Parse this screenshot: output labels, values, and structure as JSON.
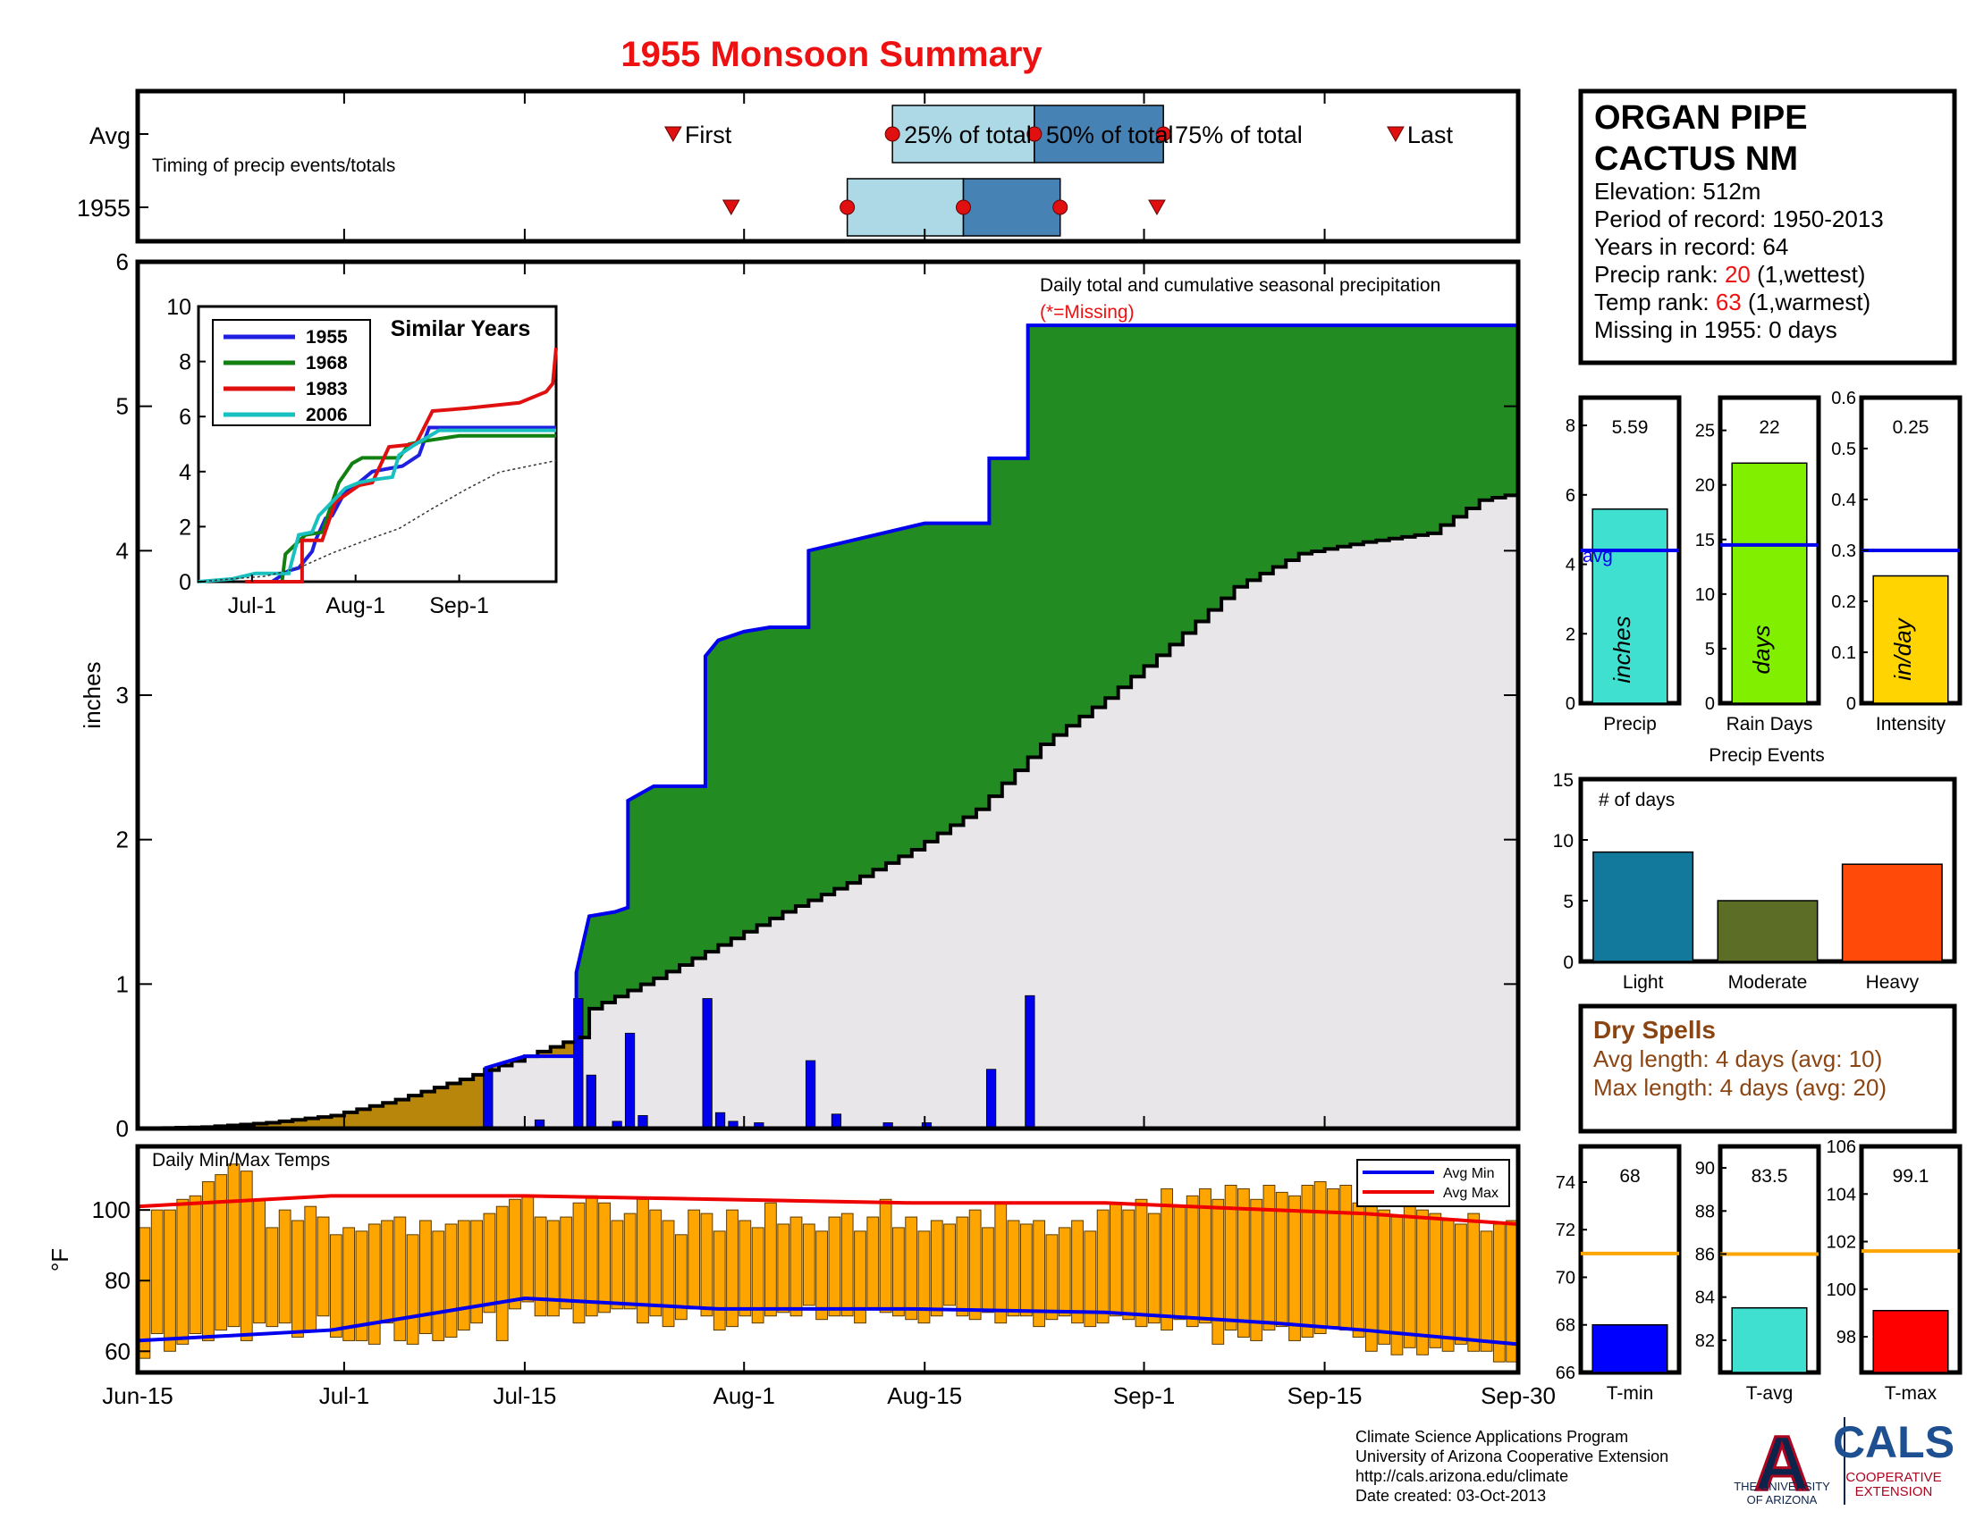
{
  "title": "1955 Monsoon Summary",
  "station": {
    "name_line1": "ORGAN PIPE",
    "name_line2": "CACTUS NM",
    "elevation": "Elevation: 512m",
    "period": "Period of record: 1950-2013",
    "years": "Years in record: 64",
    "precip_rank_label": "Precip rank: ",
    "precip_rank_value": "20",
    "precip_rank_note": " (1,wettest)",
    "temp_rank_label": "Temp rank: ",
    "temp_rank_value": "63",
    "temp_rank_note": " (1,warmest)",
    "missing": "Missing in 1955: 0 days"
  },
  "timing": {
    "subtitle": "Timing of precip events/totals",
    "row_labels": [
      "Avg",
      "1955"
    ],
    "labels": {
      "first": "First",
      "p25": "25% of total",
      "p50": "50% of total",
      "p75": "75% of total",
      "last": "Last"
    },
    "avg": {
      "first": 41.5,
      "p25": 58.5,
      "p50": 69.5,
      "p75": 79.5,
      "last": 97.5
    },
    "y1955": {
      "first": 46,
      "p25": 55,
      "p50": 64,
      "p75": 71.5,
      "last": 79
    }
  },
  "x_axis": {
    "tick_labels": [
      "Jun-15",
      "Jul-1",
      "Jul-15",
      "Aug-1",
      "Aug-15",
      "Sep-1",
      "Sep-15",
      "Sep-30"
    ],
    "tick_days": [
      0,
      16,
      30,
      47,
      61,
      78,
      92,
      107
    ]
  },
  "chart_data": [
    {
      "type": "area",
      "name": "main-precip",
      "title": "Daily total and cumulative seasonal precipitation",
      "note": "(*=Missing)",
      "ylabel": "inches",
      "ylim": [
        0,
        6
      ],
      "yticks": [
        0,
        1,
        2,
        3,
        4,
        5,
        6
      ],
      "xlim": [
        0,
        107
      ],
      "cum_1955": [
        [
          0,
          0
        ],
        [
          27,
          0
        ],
        [
          27,
          0.42
        ],
        [
          30,
          0.5
        ],
        [
          34,
          0.5
        ],
        [
          34,
          1.08
        ],
        [
          35,
          1.47
        ],
        [
          37,
          1.5
        ],
        [
          38,
          1.53
        ],
        [
          38,
          2.27
        ],
        [
          40,
          2.37
        ],
        [
          44,
          2.37
        ],
        [
          44,
          3.27
        ],
        [
          45,
          3.38
        ],
        [
          47,
          3.44
        ],
        [
          49,
          3.47
        ],
        [
          52,
          3.47
        ],
        [
          52,
          4.0
        ],
        [
          61,
          4.19
        ],
        [
          66,
          4.19
        ],
        [
          66,
          4.64
        ],
        [
          69,
          4.64
        ],
        [
          69,
          5.56
        ],
        [
          107,
          5.56
        ]
      ],
      "cum_avg": [
        [
          0,
          0
        ],
        [
          5,
          0.01
        ],
        [
          10,
          0.04
        ],
        [
          15,
          0.09
        ],
        [
          20,
          0.2
        ],
        [
          25,
          0.34
        ],
        [
          30,
          0.5
        ],
        [
          34,
          0.63
        ],
        [
          35,
          0.83
        ],
        [
          40,
          1.04
        ],
        [
          45,
          1.27
        ],
        [
          50,
          1.5
        ],
        [
          55,
          1.7
        ],
        [
          60,
          1.93
        ],
        [
          63,
          2.1
        ],
        [
          65,
          2.21
        ],
        [
          70,
          2.66
        ],
        [
          75,
          2.98
        ],
        [
          80,
          3.35
        ],
        [
          85,
          3.75
        ],
        [
          90,
          3.98
        ],
        [
          95,
          4.06
        ],
        [
          100,
          4.12
        ],
        [
          104,
          4.35
        ],
        [
          107,
          4.4
        ]
      ],
      "daily_1955": [
        [
          27,
          0.42
        ],
        [
          31,
          0.06
        ],
        [
          34,
          0.9
        ],
        [
          35,
          0.37
        ],
        [
          37,
          0.05
        ],
        [
          38,
          0.66
        ],
        [
          39,
          0.09
        ],
        [
          44,
          0.9
        ],
        [
          45,
          0.11
        ],
        [
          46,
          0.05
        ],
        [
          48,
          0.04
        ],
        [
          52,
          0.47
        ],
        [
          54,
          0.1
        ],
        [
          58,
          0.04
        ],
        [
          61,
          0.04
        ],
        [
          66,
          0.41
        ],
        [
          69,
          0.92
        ]
      ]
    },
    {
      "type": "line",
      "name": "similar-years",
      "title": "Similar Years",
      "xtick_labels": [
        "Jul-1",
        "Aug-1",
        "Sep-1"
      ],
      "xtick_days": [
        16,
        47,
        78
      ],
      "ylim": [
        0,
        10
      ],
      "yticks": [
        0,
        2,
        4,
        6,
        8,
        10
      ],
      "series": [
        {
          "name": "1955",
          "color": "#1f1fe0",
          "points": [
            [
              14,
              0
            ],
            [
              22,
              0
            ],
            [
              27,
              0.4
            ],
            [
              30,
              0.5
            ],
            [
              34,
              1.1
            ],
            [
              35,
              1.5
            ],
            [
              38,
              2.3
            ],
            [
              40,
              2.4
            ],
            [
              44,
              3.3
            ],
            [
              47,
              3.5
            ],
            [
              52,
              4.0
            ],
            [
              61,
              4.2
            ],
            [
              66,
              4.6
            ],
            [
              69,
              5.6
            ],
            [
              107,
              5.6
            ]
          ]
        },
        {
          "name": "1968",
          "color": "#118011",
          "points": [
            [
              14,
              0
            ],
            [
              25,
              0
            ],
            [
              26,
              1.0
            ],
            [
              32,
              1.7
            ],
            [
              37,
              1.8
            ],
            [
              42,
              3.6
            ],
            [
              46,
              4.3
            ],
            [
              49,
              4.5
            ],
            [
              60,
              4.5
            ],
            [
              63,
              5.0
            ],
            [
              67,
              5.1
            ],
            [
              78,
              5.3
            ],
            [
              107,
              5.3
            ]
          ]
        },
        {
          "name": "1983",
          "color": "#e01010",
          "points": [
            [
              14,
              0
            ],
            [
              31,
              0
            ],
            [
              31,
              1.5
            ],
            [
              37,
              1.5
            ],
            [
              41,
              2.9
            ],
            [
              48,
              3.5
            ],
            [
              52,
              3.6
            ],
            [
              57,
              4.9
            ],
            [
              65,
              5.0
            ],
            [
              70,
              6.2
            ],
            [
              80,
              6.3
            ],
            [
              88,
              6.4
            ],
            [
              96,
              6.5
            ],
            [
              104,
              6.9
            ],
            [
              106,
              7.2
            ],
            [
              107,
              8.5
            ]
          ]
        },
        {
          "name": "2006",
          "color": "#18c0c0",
          "points": [
            [
              0,
              0
            ],
            [
              10,
              0.1
            ],
            [
              17,
              0.3
            ],
            [
              27,
              0.3
            ],
            [
              30,
              1.7
            ],
            [
              34,
              1.8
            ],
            [
              36,
              2.4
            ],
            [
              40,
              2.9
            ],
            [
              44,
              3.4
            ],
            [
              48,
              3.6
            ],
            [
              52,
              3.7
            ],
            [
              58,
              3.8
            ],
            [
              60,
              4.6
            ],
            [
              65,
              5.0
            ],
            [
              72,
              5.5
            ],
            [
              107,
              5.5
            ]
          ]
        },
        {
          "name": "avg",
          "color": "#333333",
          "points": [
            [
              0,
              0
            ],
            [
              20,
              0.2
            ],
            [
              30,
              0.5
            ],
            [
              40,
              1.04
            ],
            [
              50,
              1.5
            ],
            [
              60,
              1.93
            ],
            [
              70,
              2.66
            ],
            [
              80,
              3.35
            ],
            [
              90,
              3.98
            ],
            [
              107,
              4.4
            ]
          ]
        }
      ]
    },
    {
      "type": "bar",
      "name": "precip-stats",
      "panels": [
        {
          "label": "Precip",
          "unit": "inches",
          "value": 5.59,
          "value_label": "5.59",
          "avg": 4.4,
          "avg_label": "avg",
          "ylim": [
            0,
            8.8
          ],
          "yticks": [
            0,
            2,
            4,
            6,
            8
          ],
          "color": "#40e0d0"
        },
        {
          "label": "Rain Days",
          "unit": "days",
          "value": 22,
          "value_label": "22",
          "avg": 14.5,
          "ylim": [
            0,
            28
          ],
          "yticks": [
            0,
            5,
            10,
            15,
            20,
            25
          ],
          "color": "#80f000"
        },
        {
          "label": "Intensity",
          "unit": "in/day",
          "value": 0.25,
          "value_label": "0.25",
          "avg": 0.3,
          "ylim": [
            0,
            0.6
          ],
          "yticks": [
            0,
            0.1,
            0.2,
            0.3,
            0.4,
            0.5,
            0.6
          ],
          "color": "#ffd400"
        }
      ]
    },
    {
      "type": "bar",
      "name": "precip-events",
      "title": "Precip Events",
      "ylabel_inside": "# of days",
      "categories": [
        "Light",
        "Moderate",
        "Heavy"
      ],
      "values": [
        9,
        5,
        8
      ],
      "colors": [
        "#13799c",
        "#5c6e25",
        "#ff4a0a"
      ],
      "ylim": [
        0,
        15
      ],
      "yticks": [
        0,
        5,
        10,
        15
      ]
    },
    {
      "type": "bar",
      "name": "daily-temps",
      "title": "Daily Min/Max Temps",
      "ylabel": "°F",
      "ylim": [
        54,
        118
      ],
      "yticks": [
        60,
        80,
        100
      ],
      "legend": [
        "Avg Min",
        "Avg Max"
      ],
      "legend_position": "top-right",
      "daily_min": [
        58,
        65,
        60,
        62,
        65,
        63,
        66,
        67,
        63,
        68,
        67,
        68,
        64,
        66,
        70,
        64,
        63,
        63,
        62,
        68,
        63,
        62,
        65,
        63,
        64,
        66,
        68,
        71,
        63,
        72,
        74,
        70,
        70,
        72,
        68,
        70,
        71,
        72,
        72,
        68,
        70,
        67,
        69,
        72,
        70,
        66,
        67,
        70,
        68,
        70,
        71,
        70,
        73,
        69,
        70,
        70,
        68,
        72,
        71,
        70,
        69,
        68,
        70,
        73,
        70,
        69,
        71,
        68,
        70,
        70,
        67,
        69,
        70,
        68,
        67,
        68,
        70,
        69,
        67,
        68,
        66,
        69,
        67,
        68,
        62,
        66,
        64,
        63,
        66,
        67,
        63,
        64,
        65,
        67,
        66,
        64,
        60,
        62,
        59,
        61,
        59,
        61,
        60,
        62,
        60,
        60,
        57,
        57
      ],
      "daily_max": [
        95,
        100,
        100,
        103,
        104,
        108,
        110,
        113,
        111,
        103,
        95,
        100,
        97,
        101,
        98,
        93,
        95,
        94,
        96,
        97,
        98,
        93,
        97,
        94,
        96,
        97,
        97,
        99,
        101,
        103,
        104,
        98,
        97,
        98,
        102,
        104,
        102,
        97,
        99,
        103,
        100,
        97,
        93,
        100,
        99,
        94,
        100,
        97,
        95,
        102,
        96,
        98,
        96,
        94,
        98,
        99,
        94,
        98,
        103,
        95,
        98,
        94,
        97,
        96,
        98,
        100,
        95,
        102,
        97,
        96,
        97,
        93,
        95,
        97,
        94,
        100,
        102,
        100,
        103,
        99,
        106,
        101,
        104,
        106,
        103,
        107,
        106,
        103,
        107,
        105,
        104,
        107,
        108,
        106,
        107,
        102,
        105,
        100,
        98,
        103,
        100,
        99,
        97,
        96,
        99,
        94,
        96,
        97
      ],
      "avg_min": [
        [
          0,
          63
        ],
        [
          15,
          66
        ],
        [
          30,
          75
        ],
        [
          45,
          72
        ],
        [
          60,
          72
        ],
        [
          75,
          71
        ],
        [
          88,
          68
        ],
        [
          95,
          66
        ],
        [
          107,
          62
        ]
      ],
      "avg_max": [
        [
          0,
          101
        ],
        [
          15,
          104
        ],
        [
          30,
          104
        ],
        [
          45,
          103
        ],
        [
          60,
          102
        ],
        [
          75,
          102
        ],
        [
          88,
          100
        ],
        [
          95,
          99
        ],
        [
          107,
          96
        ]
      ]
    },
    {
      "type": "bar",
      "name": "temp-stats",
      "panels": [
        {
          "label": "T-min",
          "value": 68,
          "value_label": "68",
          "avg": 71,
          "ylim": [
            66,
            75.5
          ],
          "yticks": [
            66,
            68,
            70,
            72,
            74
          ],
          "color": "#0000ff"
        },
        {
          "label": "T-avg",
          "value": 83.5,
          "value_label": "83.5",
          "avg": 86,
          "ylim": [
            80.5,
            91
          ],
          "yticks": [
            82,
            84,
            86,
            88,
            90
          ],
          "color": "#40e0d0"
        },
        {
          "label": "T-max",
          "value": 99.1,
          "value_label": "99.1",
          "avg": 101.6,
          "ylim": [
            96.5,
            106
          ],
          "yticks": [
            98,
            100,
            102,
            104,
            106
          ],
          "color": "#ff0000"
        }
      ]
    }
  ],
  "dry_spells": {
    "title": "Dry Spells",
    "avg_length": "Avg length: 4 days (avg: 10)",
    "max_length": "Max length: 4 days (avg: 20)"
  },
  "footer": {
    "line1": "Climate Science Applications Program",
    "line2": "University of Arizona Cooperative Extension",
    "line3": "http://cals.arizona.edu/climate",
    "line4": " Date created: 03-Oct-2013"
  },
  "logos": {
    "ua_letter": "A",
    "ua_line1": "THE UNIVERSITY",
    "ua_line2": "OF ARIZONA",
    "cals": "CALS",
    "cals_line1": "COOPERATIVE",
    "cals_line2": "EXTENSION"
  },
  "colors": {
    "title_red": "#ee1111",
    "cum_green": "#228b22",
    "cum_line": "#0000ee",
    "avg_fill": "#e8e6e8",
    "early_brown": "#b8860b",
    "temp_orange": "#ffa500",
    "timing_light": "#add8e6",
    "timing_dark": "#4682b4",
    "marker_red": "#e01010",
    "dry_brown": "#8b4513"
  }
}
